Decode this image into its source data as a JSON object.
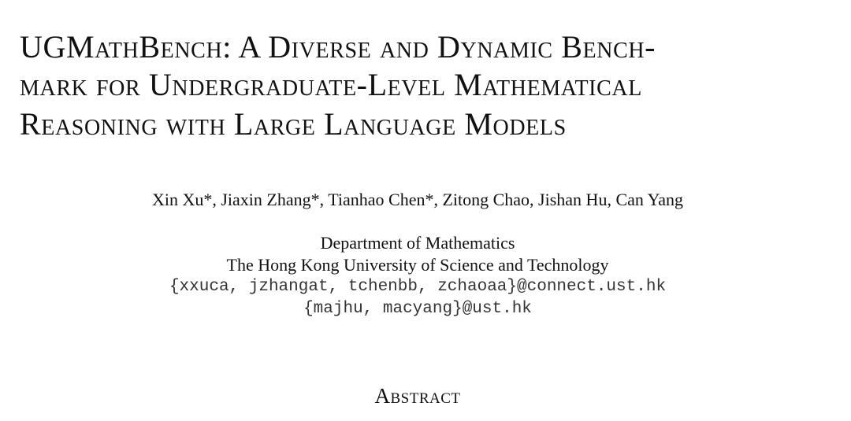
{
  "paper": {
    "title_lines": [
      "UGMathBench: A Diverse and Dynamic Bench-",
      "mark for Undergraduate-Level Mathematical",
      "Reasoning with Large Language Models"
    ],
    "authors": "Xin Xu*, Jiaxin Zhang*, Tianhao Chen*, Zitong Chao, Jishan Hu, Can Yang",
    "affiliation": {
      "department": "Department of Mathematics",
      "university": "The Hong Kong University of Science and Technology",
      "emails": [
        "{xxuca, jzhangat, tchenbb, zchaoaa}@connect.ust.hk",
        "{majhu, macyang}@ust.hk"
      ]
    },
    "section_heading": "Abstract"
  }
}
